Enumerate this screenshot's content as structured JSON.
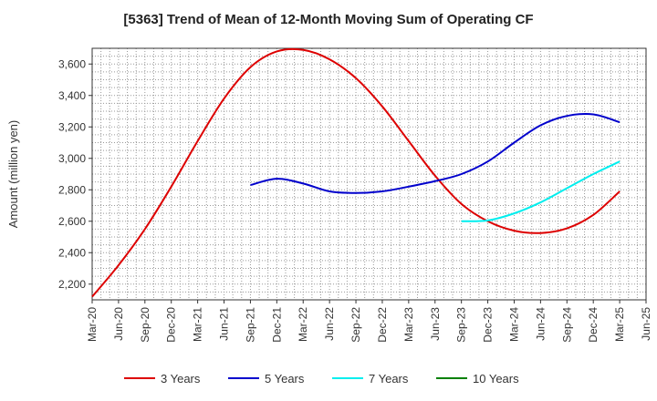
{
  "chart_data": {
    "type": "line",
    "title": "[5363]  Trend of Mean of 12-Month Moving Sum of Operating CF",
    "xlabel": "",
    "ylabel": "Amount (million yen)",
    "ylim": [
      2100,
      3700
    ],
    "yticks": [
      2200,
      2400,
      2600,
      2800,
      3000,
      3200,
      3400,
      3600
    ],
    "x_ticks": [
      "Mar-20",
      "Jun-20",
      "Sep-20",
      "Dec-20",
      "Mar-21",
      "Jun-21",
      "Sep-21",
      "Dec-21",
      "Mar-22",
      "Jun-22",
      "Sep-22",
      "Dec-22",
      "Mar-23",
      "Jun-23",
      "Sep-23",
      "Dec-23",
      "Mar-24",
      "Jun-24",
      "Sep-24",
      "Dec-24",
      "Mar-25",
      "Jun-25"
    ],
    "grid": true,
    "legend_position": "bottom",
    "series": [
      {
        "name": "3 Years",
        "color": "#dd0000",
        "x": [
          "Mar-20",
          "Jun-20",
          "Sep-20",
          "Dec-20",
          "Mar-21",
          "Jun-21",
          "Sep-21",
          "Dec-21",
          "Mar-22",
          "Jun-22",
          "Sep-22",
          "Dec-22",
          "Mar-23",
          "Jun-23",
          "Sep-23",
          "Dec-23",
          "Mar-24",
          "Jun-24",
          "Sep-24",
          "Dec-24",
          "Mar-25"
        ],
        "values": [
          2120,
          2320,
          2550,
          2820,
          3110,
          3380,
          3580,
          3680,
          3690,
          3630,
          3510,
          3330,
          3110,
          2890,
          2710,
          2600,
          2540,
          2525,
          2555,
          2640,
          2790
        ]
      },
      {
        "name": "5 Years",
        "color": "#0000cc",
        "x": [
          "Sep-21",
          "Dec-21",
          "Mar-22",
          "Jun-22",
          "Sep-22",
          "Dec-22",
          "Mar-23",
          "Jun-23",
          "Sep-23",
          "Dec-23",
          "Mar-24",
          "Jun-24",
          "Sep-24",
          "Dec-24",
          "Mar-25"
        ],
        "values": [
          2830,
          2870,
          2840,
          2790,
          2780,
          2790,
          2820,
          2855,
          2900,
          2980,
          3100,
          3210,
          3270,
          3280,
          3230
        ]
      },
      {
        "name": "7 Years",
        "color": "#00eeee",
        "x": [
          "Sep-23",
          "Dec-23",
          "Mar-24",
          "Jun-24",
          "Sep-24",
          "Dec-24",
          "Mar-25"
        ],
        "values": [
          2600,
          2605,
          2650,
          2720,
          2810,
          2900,
          2980
        ]
      },
      {
        "name": "10 Years",
        "color": "#008000",
        "x": [],
        "values": []
      }
    ]
  }
}
